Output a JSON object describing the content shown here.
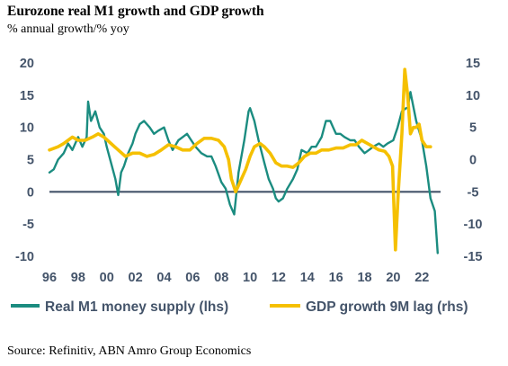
{
  "chart_data": {
    "type": "line",
    "title": "Eurozone real M1 growth and GDP growth",
    "subtitle": "% annual growth/% yoy",
    "source": "Source: Refinitiv, ABN Amro Group Economics",
    "x_ticks": [
      "96",
      "98",
      "00",
      "02",
      "04",
      "06",
      "08",
      "10",
      "12",
      "14",
      "16",
      "18",
      "20",
      "22"
    ],
    "xlim": [
      1996,
      2023.3
    ],
    "y_left": {
      "ticks": [
        "20",
        "15",
        "10",
        "5",
        "0",
        "-5",
        "-10"
      ],
      "lim": [
        -10,
        20
      ]
    },
    "y_right": {
      "ticks": [
        "15",
        "10",
        "5",
        "0",
        "-5",
        "-10",
        "-15"
      ],
      "lim": [
        -15,
        15
      ]
    },
    "grid": false,
    "legend_position": "bottom",
    "colors": {
      "m1": "#1b8c80",
      "gdp": "#f5c000",
      "zero_line": "#44546a",
      "axis_text": "#44546a"
    },
    "series": [
      {
        "name": "Real M1 money supply (lhs)",
        "axis": "left",
        "x": [
          1996.0,
          1996.3,
          1996.6,
          1997.0,
          1997.3,
          1997.6,
          1998.0,
          1998.3,
          1998.6,
          1998.7,
          1998.9,
          1999.2,
          1999.5,
          1999.8,
          2000.0,
          2000.3,
          2000.6,
          2000.8,
          2001.0,
          2001.2,
          2001.5,
          2001.8,
          2002.0,
          2002.3,
          2002.6,
          2003.0,
          2003.3,
          2003.6,
          2004.0,
          2004.3,
          2004.6,
          2005.0,
          2005.3,
          2005.6,
          2005.9,
          2006.2,
          2006.6,
          2007.0,
          2007.3,
          2007.6,
          2008.0,
          2008.3,
          2008.6,
          2008.9,
          2009.2,
          2009.6,
          2009.9,
          2010.0,
          2010.3,
          2010.6,
          2011.0,
          2011.3,
          2011.6,
          2011.8,
          2012.0,
          2012.3,
          2012.6,
          2013.0,
          2013.3,
          2013.6,
          2014.0,
          2014.3,
          2014.6,
          2015.0,
          2015.3,
          2015.6,
          2015.8,
          2016.0,
          2016.3,
          2016.6,
          2017.0,
          2017.3,
          2017.6,
          2018.0,
          2018.3,
          2018.6,
          2019.0,
          2019.3,
          2019.6,
          2020.0,
          2020.3,
          2020.6,
          2020.9,
          2021.0,
          2021.2,
          2021.6,
          2022.0,
          2022.3,
          2022.6,
          2022.9,
          2023.1
        ],
        "values": [
          3.0,
          3.5,
          5.0,
          6.0,
          7.5,
          6.5,
          8.5,
          7.0,
          8.5,
          14.0,
          11.0,
          12.5,
          10.0,
          9.0,
          7.0,
          4.5,
          2.0,
          -0.5,
          3.0,
          4.0,
          6.0,
          7.5,
          9.0,
          10.5,
          11.0,
          10.0,
          9.0,
          9.5,
          10.0,
          8.0,
          6.5,
          8.0,
          8.5,
          9.0,
          8.0,
          7.0,
          6.0,
          5.5,
          5.5,
          4.0,
          1.5,
          0.5,
          -2.0,
          -3.5,
          3.0,
          8.0,
          12.5,
          13.0,
          11.0,
          8.0,
          4.5,
          2.0,
          0.5,
          -1.0,
          -1.5,
          -1.0,
          0.5,
          2.0,
          3.5,
          6.5,
          6.0,
          7.0,
          7.0,
          8.5,
          11.0,
          11.0,
          10.0,
          9.0,
          9.0,
          8.5,
          8.0,
          8.0,
          7.0,
          6.0,
          6.5,
          7.0,
          7.5,
          7.0,
          7.5,
          8.0,
          10.0,
          12.5,
          13.0,
          13.0,
          15.5,
          11.0,
          8.0,
          4.0,
          -1.0,
          -3.0,
          -9.5
        ]
      },
      {
        "name": "GDP growth 9M lag (rhs)",
        "axis": "right",
        "x": [
          1996.0,
          1996.6,
          1997.0,
          1997.6,
          1998.0,
          1998.5,
          1999.0,
          1999.4,
          1999.8,
          2000.3,
          2000.8,
          2001.3,
          2001.8,
          2002.3,
          2002.8,
          2003.3,
          2003.8,
          2004.3,
          2004.8,
          2005.3,
          2005.8,
          2006.3,
          2006.8,
          2007.3,
          2007.8,
          2008.2,
          2008.5,
          2008.7,
          2009.0,
          2009.3,
          2009.7,
          2010.0,
          2010.3,
          2010.7,
          2011.0,
          2011.4,
          2011.8,
          2012.2,
          2012.6,
          2013.0,
          2013.4,
          2013.8,
          2014.2,
          2014.6,
          2015.0,
          2015.5,
          2016.0,
          2016.5,
          2017.0,
          2017.4,
          2017.8,
          2018.2,
          2018.6,
          2019.0,
          2019.4,
          2019.7,
          2019.95,
          2020.15,
          2020.35,
          2020.6,
          2020.8,
          2021.0,
          2021.2,
          2021.4,
          2021.6,
          2021.8,
          2022.0,
          2022.3,
          2022.6
        ],
        "values": [
          1.5,
          2.0,
          2.5,
          3.5,
          3.0,
          3.0,
          3.5,
          4.0,
          3.5,
          2.5,
          1.5,
          0.5,
          1.0,
          1.0,
          0.5,
          0.8,
          1.5,
          2.3,
          2.0,
          1.5,
          1.5,
          2.5,
          3.3,
          3.3,
          3.0,
          2.0,
          0.0,
          -3.0,
          -5.0,
          -3.5,
          -1.5,
          0.5,
          2.0,
          2.5,
          2.0,
          1.0,
          -0.5,
          -1.0,
          -1.0,
          -1.2,
          -0.5,
          0.5,
          1.0,
          1.0,
          1.5,
          1.5,
          1.8,
          1.8,
          2.3,
          2.3,
          3.0,
          2.5,
          2.0,
          1.5,
          1.3,
          0.5,
          -1.0,
          -14.0,
          -5.0,
          4.0,
          14.0,
          10.0,
          4.0,
          5.0,
          5.0,
          5.5,
          3.0,
          2.0,
          2.0
        ]
      }
    ]
  }
}
